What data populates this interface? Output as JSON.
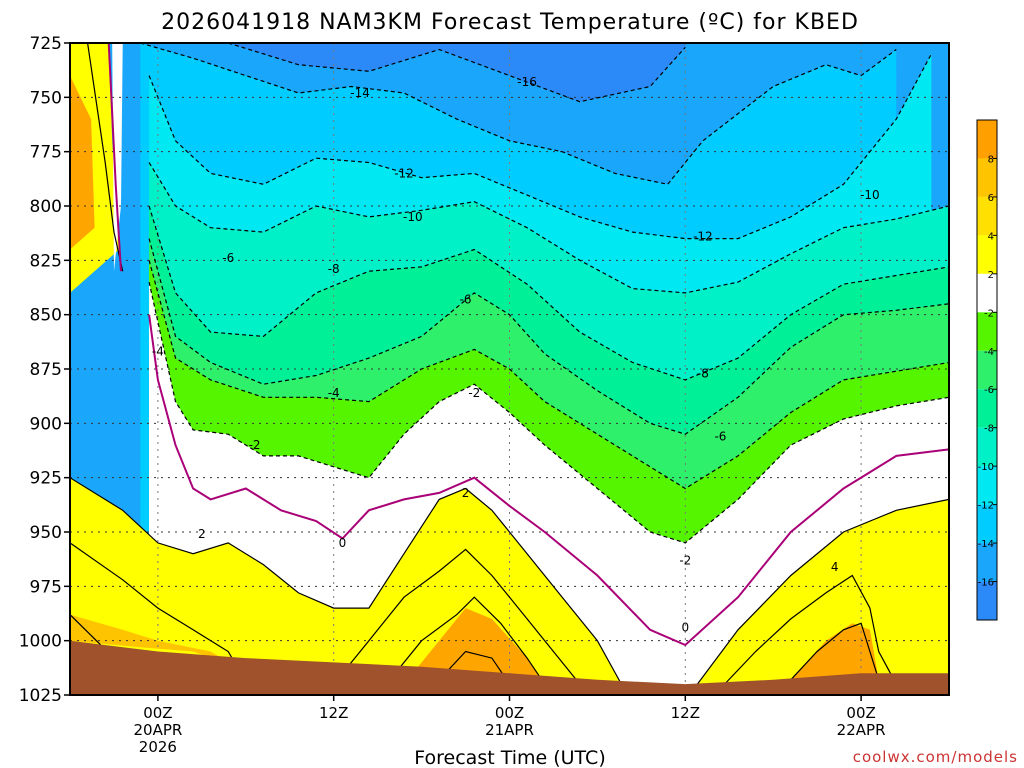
{
  "chart_data": {
    "type": "heatmap",
    "title": "2026041918 NAM3KM Forecast Temperature (ºC) for KBED",
    "xlabel": "Forecast Time (UTC)",
    "ylabel": "",
    "y_axis": {
      "values": [
        725,
        750,
        775,
        800,
        825,
        850,
        875,
        900,
        925,
        950,
        975,
        1000,
        1025
      ],
      "labels": [
        "725",
        "750",
        "775",
        "800",
        "825",
        "850",
        "875",
        "900",
        "925",
        "950",
        "975",
        "1000",
        "1025"
      ],
      "range": [
        725,
        1025
      ],
      "units": "hPa",
      "inverted": true
    },
    "x_axis": {
      "range_hours": [
        -5,
        45
      ],
      "ticks": [
        {
          "hour": 0,
          "lines": [
            "00Z",
            "20APR",
            "2026"
          ]
        },
        {
          "hour": 10,
          "lines": [
            "12Z"
          ]
        },
        {
          "hour": 20,
          "lines": [
            "00Z",
            "21APR"
          ]
        },
        {
          "hour": 30,
          "lines": [
            "12Z"
          ]
        },
        {
          "hour": 40,
          "lines": [
            "00Z",
            "22APR"
          ]
        }
      ]
    },
    "grid": true,
    "colorbar": {
      "levels": [
        -18,
        -16,
        -14,
        -12,
        -10,
        -8,
        -6,
        -4,
        -2,
        2,
        4,
        6,
        8,
        10
      ],
      "labels": [
        "-16",
        "-14",
        "-12",
        "-10",
        "-8",
        "-6",
        "-4",
        "-2",
        "2",
        "4",
        "6",
        "8"
      ],
      "colors": [
        "#2b8af7",
        "#1aa6fb",
        "#00ccff",
        "#00e8f2",
        "#00f0c8",
        "#00f098",
        "#2ef06a",
        "#55f500",
        "#ffffff",
        "#ffff00",
        "#ffe000",
        "#ffc400",
        "#ff9f00"
      ]
    },
    "fill_bands": [
      {
        "label": "-16",
        "level_min": -18,
        "level_max": -16,
        "color": "#2b8af7"
      },
      {
        "label": "-14",
        "level_min": -16,
        "level_max": -14,
        "color": "#1aa6fb"
      },
      {
        "label": "-12",
        "level_min": -14,
        "level_max": -12,
        "color": "#00ccff"
      },
      {
        "label": "-10",
        "level_min": -12,
        "level_max": -10,
        "color": "#00e8f2"
      },
      {
        "label": "-8",
        "level_min": -10,
        "level_max": -8,
        "color": "#00f0c8"
      },
      {
        "label": "-6",
        "level_min": -8,
        "level_max": -6,
        "color": "#00f098"
      },
      {
        "label": "-4",
        "level_min": -6,
        "level_max": -4,
        "color": "#2ef06a"
      },
      {
        "label": "-2",
        "level_min": -4,
        "level_max": -2,
        "color": "#55f500"
      },
      {
        "label": "2",
        "level_min": 2,
        "level_max": 4,
        "color": "#ffff00"
      },
      {
        "label": "4",
        "level_min": 4,
        "level_max": 6,
        "color": "#ffe000"
      },
      {
        "label": "6",
        "level_min": 6,
        "level_max": 8,
        "color": "#ffc400"
      }
    ],
    "contours": [
      {
        "level": -16,
        "style": "dashed",
        "color": "#000000",
        "hours": [
          4,
          8,
          12,
          16,
          20,
          24,
          28,
          30
        ],
        "pressures": [
          725,
          735,
          738,
          728,
          740,
          752,
          745,
          727
        ]
      },
      {
        "level": -14,
        "style": "dashed",
        "color": "#000000",
        "hours": [
          -1,
          2,
          5,
          8,
          11,
          14,
          17,
          20,
          23,
          26,
          29,
          31,
          35,
          38,
          40,
          42
        ],
        "pressures": [
          725,
          732,
          740,
          748,
          745,
          748,
          760,
          770,
          775,
          785,
          790,
          770,
          745,
          735,
          740,
          728
        ]
      },
      {
        "level": -12,
        "style": "dashed",
        "color": "#000000",
        "hours": [
          -0.5,
          1,
          3,
          6,
          9,
          12,
          15,
          18,
          21,
          24,
          27,
          30,
          33,
          36,
          39,
          42,
          44
        ],
        "pressures": [
          740,
          770,
          785,
          790,
          778,
          780,
          787,
          785,
          795,
          805,
          812,
          815,
          815,
          805,
          790,
          760,
          730
        ]
      },
      {
        "level": -10,
        "style": "dashed",
        "color": "#000000",
        "hours": [
          -0.5,
          1,
          3,
          6,
          9,
          12,
          15,
          18,
          21,
          24,
          27,
          30,
          33,
          36,
          39,
          42,
          45
        ],
        "pressures": [
          780,
          800,
          810,
          812,
          800,
          805,
          802,
          798,
          810,
          825,
          838,
          840,
          835,
          822,
          810,
          806,
          800
        ]
      },
      {
        "level": -8,
        "style": "dashed",
        "color": "#000000",
        "hours": [
          -0.5,
          1,
          3,
          6,
          9,
          12,
          15,
          18,
          21,
          24,
          27,
          30,
          33,
          36,
          39,
          42,
          45
        ],
        "pressures": [
          800,
          840,
          858,
          860,
          840,
          830,
          828,
          820,
          836,
          858,
          872,
          880,
          870,
          850,
          836,
          832,
          828
        ]
      },
      {
        "level": -6,
        "style": "dashed",
        "color": "#000000",
        "hours": [
          -0.5,
          1,
          3,
          6,
          9,
          12,
          15,
          18,
          20,
          22,
          25,
          28,
          30,
          33,
          36,
          39,
          42,
          45
        ],
        "pressures": [
          815,
          860,
          872,
          882,
          878,
          870,
          860,
          840,
          850,
          868,
          885,
          900,
          905,
          888,
          865,
          850,
          848,
          845
        ]
      },
      {
        "level": -4,
        "style": "dashed",
        "color": "#000000",
        "hours": [
          -0.5,
          1,
          3,
          6,
          9,
          12,
          15,
          18,
          20,
          22,
          25,
          28,
          30,
          33,
          36,
          39,
          42,
          45
        ],
        "pressures": [
          825,
          870,
          880,
          888,
          888,
          890,
          875,
          866,
          875,
          890,
          905,
          920,
          930,
          915,
          895,
          880,
          876,
          872
        ]
      },
      {
        "level": -2,
        "style": "dashed",
        "color": "#000000",
        "hours": [
          -0.5,
          1,
          2,
          4,
          6,
          8,
          10,
          12,
          14,
          16,
          18,
          20,
          22,
          25,
          28,
          30,
          33,
          36,
          39,
          42,
          45
        ],
        "pressures": [
          835,
          890,
          903,
          905,
          915,
          915,
          920,
          925,
          905,
          890,
          882,
          895,
          910,
          930,
          950,
          955,
          935,
          910,
          898,
          892,
          888
        ]
      },
      {
        "level": 0,
        "style": "solid",
        "color": "#aa0077",
        "hours": [
          -0.5,
          0,
          1,
          2,
          3,
          5,
          7,
          9,
          10.5,
          12,
          14,
          16,
          18,
          20,
          22,
          25,
          28,
          30,
          33,
          36,
          39,
          42,
          45
        ],
        "pressures": [
          850,
          880,
          910,
          930,
          935,
          930,
          940,
          945,
          953,
          940,
          935,
          932,
          925,
          938,
          950,
          970,
          995,
          1002,
          980,
          950,
          930,
          915,
          912
        ]
      },
      {
        "level": 2,
        "style": "solid",
        "color": "#000000",
        "hours": [
          -5,
          -2,
          0,
          2,
          4,
          6,
          8,
          10,
          12,
          14,
          16,
          17.5,
          19,
          21,
          23,
          25,
          26.5
        ],
        "pressures": [
          925,
          940,
          955,
          960,
          955,
          965,
          978,
          985,
          985,
          960,
          935,
          930,
          940,
          960,
          980,
          1000,
          1022
        ]
      },
      {
        "level": 2,
        "style": "solid",
        "color": "#000000",
        "hours": [
          30.5,
          33,
          36,
          39,
          42,
          45
        ],
        "pressures": [
          1022,
          995,
          970,
          950,
          940,
          935
        ]
      },
      {
        "level": 4,
        "style": "solid",
        "color": "#000000",
        "hours": [
          -5,
          -2,
          0,
          2,
          4,
          4.5
        ],
        "pressures": [
          955,
          972,
          985,
          995,
          1005,
          1012
        ]
      },
      {
        "level": 4,
        "style": "solid",
        "color": "#000000",
        "hours": [
          10,
          12,
          14,
          16,
          17.5,
          19,
          21,
          23,
          24
        ],
        "pressures": [
          1020,
          1000,
          980,
          968,
          958,
          970,
          990,
          1010,
          1020
        ]
      },
      {
        "level": 4,
        "style": "solid",
        "color": "#000000",
        "hours": [
          32,
          34,
          36,
          38,
          39.5,
          40.5,
          41,
          42
        ],
        "pressures": [
          1022,
          1005,
          990,
          978,
          970,
          985,
          1005,
          1020
        ]
      },
      {
        "level": 6,
        "style": "solid",
        "color": "#000000",
        "hours": [
          -5,
          -3.5,
          -2
        ],
        "pressures": [
          988,
          1000,
          1012
        ]
      },
      {
        "level": 6,
        "style": "solid",
        "color": "#000000",
        "hours": [
          13,
          15,
          17,
          18,
          19.5,
          21,
          22
        ],
        "pressures": [
          1020,
          1000,
          988,
          980,
          992,
          1008,
          1020
        ]
      },
      {
        "level": 6,
        "style": "solid",
        "color": "#000000",
        "hours": [
          36,
          37.5,
          39,
          40,
          41
        ],
        "pressures": [
          1018,
          1005,
          995,
          992,
          1018
        ]
      },
      {
        "level": 8,
        "style": "solid",
        "color": "#000000",
        "hours": [
          16,
          17.5,
          19,
          20
        ],
        "pressures": [
          1018,
          1005,
          1008,
          1020
        ]
      },
      {
        "level": 2,
        "style": "solid",
        "color": "#000000",
        "hours": [
          -4,
          -3,
          -2.5,
          -2
        ],
        "pressures": [
          725,
          780,
          812,
          830
        ]
      },
      {
        "level": 0,
        "style": "solid",
        "color": "#aa0077",
        "hours": [
          -2.8,
          -2.4,
          -2.1
        ],
        "pressures": [
          725,
          790,
          830
        ]
      }
    ],
    "ground": {
      "color": "#a0522d",
      "hours": [
        -5,
        0,
        5,
        10,
        15,
        20,
        25,
        30,
        35,
        40,
        45
      ],
      "pressures": [
        1000,
        1005,
        1008,
        1010,
        1012,
        1015,
        1018,
        1020,
        1018,
        1015,
        1015
      ]
    },
    "surface_fill": {
      "warm_patches": [
        {
          "hours": [
            -5,
            -2,
            0,
            3,
            4.5,
            2,
            -1,
            -5
          ],
          "pressures": [
            988,
            995,
            1000,
            1005,
            1012,
            1005,
            1003,
            1000
          ],
          "color": "#ffc400"
        },
        {
          "hours": [
            14,
            16,
            17.5,
            19,
            21,
            22,
            18,
            14
          ],
          "pressures": [
            1020,
            1000,
            985,
            990,
            1008,
            1020,
            1018,
            1020
          ],
          "color": "#ffa500"
        },
        {
          "hours": [
            36,
            38,
            39.5,
            40.5,
            41,
            40,
            36
          ],
          "pressures": [
            1018,
            1000,
            992,
            995,
            1018,
            1018,
            1018
          ],
          "color": "#ffa500"
        }
      ]
    },
    "contour_labels": [
      {
        "text": "-16",
        "hour": 21,
        "pressure": 743
      },
      {
        "text": "-14",
        "hour": 11.5,
        "pressure": 748
      },
      {
        "text": "-12",
        "hour": 14,
        "pressure": 785
      },
      {
        "text": "-12",
        "hour": 31,
        "pressure": 814
      },
      {
        "text": "-10",
        "hour": 14.5,
        "pressure": 805
      },
      {
        "text": "-10",
        "hour": 40.5,
        "pressure": 795
      },
      {
        "text": "-8",
        "hour": 10,
        "pressure": 829
      },
      {
        "text": "-8",
        "hour": 31,
        "pressure": 877
      },
      {
        "text": "-6",
        "hour": 4,
        "pressure": 824
      },
      {
        "text": "-6",
        "hour": 17.5,
        "pressure": 843
      },
      {
        "text": "-6",
        "hour": 32,
        "pressure": 906
      },
      {
        "text": "-4",
        "hour": 0,
        "pressure": 867
      },
      {
        "text": "-4",
        "hour": 10,
        "pressure": 886
      },
      {
        "text": "-2",
        "hour": 18,
        "pressure": 886
      },
      {
        "text": "-2",
        "hour": 5.5,
        "pressure": 910
      },
      {
        "text": "-2",
        "hour": 30,
        "pressure": 963
      },
      {
        "text": "0",
        "hour": 10.5,
        "pressure": 955
      },
      {
        "text": "0",
        "hour": 30,
        "pressure": 994
      },
      {
        "text": "2",
        "hour": 2.5,
        "pressure": 951
      },
      {
        "text": "2",
        "hour": 17.5,
        "pressure": 932
      },
      {
        "text": "4",
        "hour": 38.5,
        "pressure": 966
      }
    ],
    "credit": "coolwx.com/models"
  }
}
